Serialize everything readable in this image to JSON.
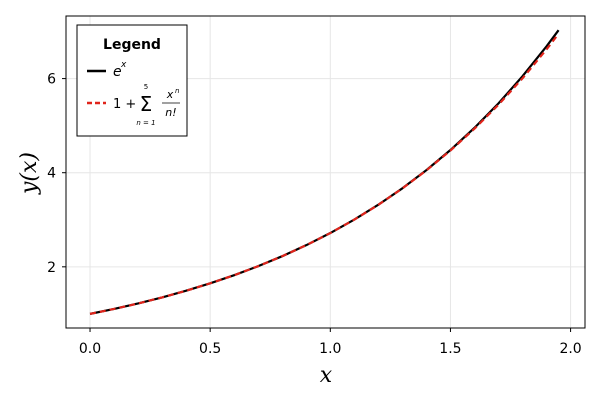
{
  "chart_data": {
    "type": "line",
    "title": "",
    "xlabel": "x",
    "ylabel": "y(x)",
    "xlim": [
      -0.1,
      2.06
    ],
    "ylim": [
      0.7,
      7.33
    ],
    "xticks": [
      0.0,
      0.5,
      1.0,
      1.5,
      2.0
    ],
    "xtick_labels": [
      "0.0",
      "0.5",
      "1.0",
      "1.5",
      "2.0"
    ],
    "yticks": [
      2,
      4,
      6
    ],
    "ytick_labels": [
      "2",
      "4",
      "6"
    ],
    "grid": true,
    "legend": {
      "title": "Legend",
      "placement": "top-left",
      "entries": [
        {
          "label": "e^x",
          "color": "#000000",
          "style": "solid"
        },
        {
          "label": "1 + Σ_{n=1}^{5} x^n / n!",
          "color": "#e0241b",
          "style": "dashed"
        }
      ]
    },
    "series": [
      {
        "name": "e^x",
        "color": "#000000",
        "style": "solid",
        "x": [
          0.0,
          0.1,
          0.2,
          0.3,
          0.4,
          0.5,
          0.6,
          0.7,
          0.8,
          0.9,
          1.0,
          1.1,
          1.2,
          1.3,
          1.4,
          1.5,
          1.6,
          1.7,
          1.8,
          1.9,
          1.95
        ],
        "y": [
          1.0,
          1.105,
          1.221,
          1.35,
          1.492,
          1.649,
          1.822,
          2.014,
          2.226,
          2.46,
          2.718,
          3.004,
          3.32,
          3.669,
          4.055,
          4.482,
          4.953,
          5.474,
          6.05,
          6.686,
          7.029
        ]
      },
      {
        "name": "1 + Σ_{n=1}^{5} x^n / n!",
        "color": "#e0241b",
        "style": "dashed",
        "x": [
          0.0,
          0.1,
          0.2,
          0.3,
          0.4,
          0.5,
          0.6,
          0.7,
          0.8,
          0.9,
          1.0,
          1.1,
          1.2,
          1.3,
          1.4,
          1.5,
          1.6,
          1.7,
          1.8,
          1.9,
          1.95
        ],
        "y": [
          1.0,
          1.105,
          1.221,
          1.35,
          1.492,
          1.649,
          1.822,
          2.014,
          2.226,
          2.46,
          2.717,
          3.003,
          3.318,
          3.666,
          4.049,
          4.471,
          4.935,
          5.445,
          6.006,
          6.622,
          6.952
        ]
      }
    ]
  }
}
